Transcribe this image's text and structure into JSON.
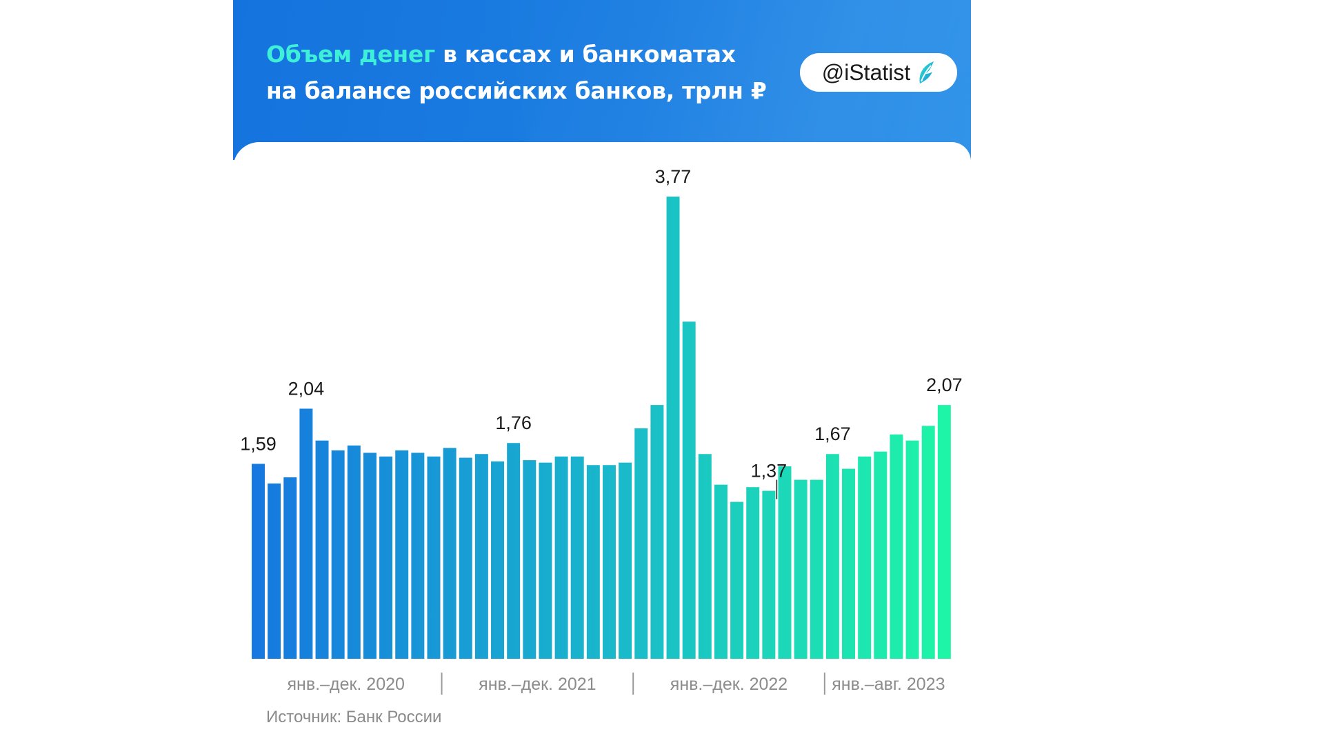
{
  "title": {
    "accent": "Объем денег",
    "line1_rest": " в кассах и банкоматах",
    "line2": "на балансе российских банков, трлн ₽"
  },
  "badge": {
    "text": "@iStatist",
    "icon": "istatist-leaf-logo"
  },
  "source": "Источник: Банк России",
  "colors": {
    "header": "#1573dd",
    "title_accent": "#3ff0d8",
    "bar_start": "#1677e0",
    "bar_end": "#1ef7a6"
  },
  "chart_data": {
    "type": "bar",
    "title": "Объем денег в кассах и банкоматах на балансе российских банков, трлн ₽",
    "xlabel": "",
    "ylabel": "",
    "ylim": [
      0,
      3.77
    ],
    "grid": false,
    "period_labels": [
      "янв.–дек. 2020",
      "янв.–дек. 2021",
      "янв.–дек. 2022",
      "янв.–авг. 2023"
    ],
    "period_sizes": [
      12,
      12,
      12,
      8
    ],
    "values": [
      1.59,
      1.43,
      1.48,
      2.04,
      1.78,
      1.7,
      1.74,
      1.68,
      1.65,
      1.7,
      1.68,
      1.65,
      1.72,
      1.64,
      1.67,
      1.61,
      1.76,
      1.62,
      1.6,
      1.65,
      1.65,
      1.58,
      1.58,
      1.6,
      1.88,
      2.07,
      3.77,
      2.75,
      1.67,
      1.42,
      1.28,
      1.4,
      1.37,
      1.57,
      1.46,
      1.46,
      1.67,
      1.55,
      1.65,
      1.69,
      1.83,
      1.78,
      1.9,
      2.07
    ],
    "data_labels": [
      {
        "index": 0,
        "text": "1,59"
      },
      {
        "index": 3,
        "text": "2,04"
      },
      {
        "index": 16,
        "text": "1,76"
      },
      {
        "index": 26,
        "text": "3,77"
      },
      {
        "index": 32,
        "text": "1,37"
      },
      {
        "index": 36,
        "text": "1,67"
      },
      {
        "index": 43,
        "text": "2,07"
      }
    ]
  }
}
